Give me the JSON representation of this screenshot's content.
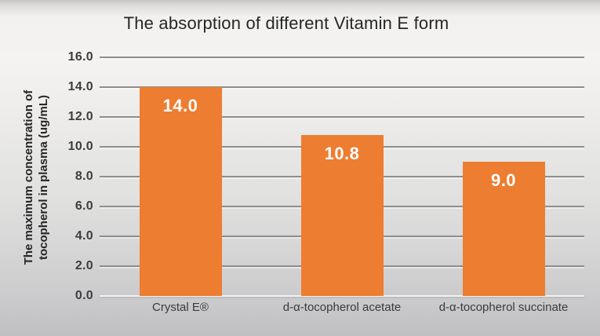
{
  "chart_data": {
    "type": "bar",
    "title": "The absorption of different Vitamin E form",
    "categories": [
      "Crystal E®",
      "d-α-tocopherol acetate",
      "d-α-tocopherol succinate"
    ],
    "values": [
      14.0,
      10.8,
      9.0
    ],
    "bar_labels": [
      "14.0",
      "10.8",
      "9.0"
    ],
    "ylabel_line1": "The maximum concentration of",
    "ylabel_line2": "tocopherol in plasma (ug/mL)",
    "xlabel": "",
    "yticks": [
      "16.0",
      "14.0",
      "12.0",
      "10.0",
      "8.0",
      "6.0",
      "4.0",
      "2.0",
      "0.0"
    ],
    "ylim": [
      0,
      16
    ],
    "grid": true,
    "legend_position": "none",
    "bar_color": "#ED7D31",
    "bar_label_color": "#FFFFFF",
    "gridline_color": "#8E8E8E",
    "text_color": "#262626",
    "tick_color": "#3D3D3D"
  }
}
